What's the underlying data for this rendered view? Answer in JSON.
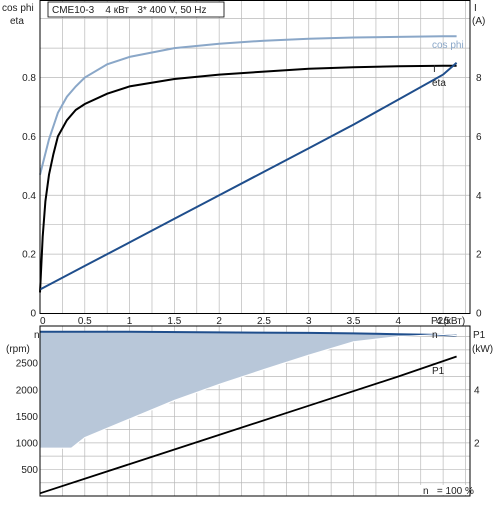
{
  "title": "CME10-3    4 кВт   3* 400 V, 50 Hz",
  "colors": {
    "cos_phi": "#8aa7c8",
    "eta": "#000000",
    "current": "#1f4e8c",
    "speed": "#1f4e8c",
    "speed_fill": "#b8c7d9",
    "p1": "#000000",
    "grid": "#b9b9b9"
  },
  "chart_data": [
    {
      "type": "line",
      "name": "electrical-curves",
      "x_axis": {
        "label": "P2(кВт)",
        "range": [
          0,
          4.8
        ],
        "ticks": [
          0,
          0.5,
          1,
          1.5,
          2,
          2.5,
          3,
          3.5,
          4,
          4.5
        ],
        "tick_labels": [
          "0",
          "0.5",
          "1",
          "1.5",
          "2",
          "2.5",
          "3",
          "3.5",
          "4",
          "4.5"
        ]
      },
      "y_left": {
        "label_line1": "cos phi",
        "label_line2": "eta",
        "range": [
          0,
          1.06
        ],
        "ticks": [
          0,
          0.2,
          0.4,
          0.6,
          0.8
        ],
        "tick_labels": [
          "0",
          "0.2",
          "0.4",
          "0.6",
          "0.8"
        ]
      },
      "y_right": {
        "label_line1": "I",
        "label_line2": "(A)",
        "range": [
          0,
          10.6
        ],
        "ticks": [
          0,
          2,
          4,
          6,
          8
        ],
        "tick_labels": [
          "0",
          "2",
          "4",
          "6",
          "8"
        ]
      },
      "grid": true,
      "series": [
        {
          "name": "cos phi",
          "axis": "left",
          "x": [
            0,
            0.05,
            0.1,
            0.2,
            0.3,
            0.4,
            0.5,
            0.75,
            1,
            1.5,
            2,
            2.5,
            3,
            3.5,
            4,
            4.5,
            4.65
          ],
          "y": [
            0.47,
            0.53,
            0.59,
            0.68,
            0.735,
            0.77,
            0.8,
            0.845,
            0.87,
            0.9,
            0.915,
            0.925,
            0.932,
            0.936,
            0.938,
            0.94,
            0.94
          ]
        },
        {
          "name": "eta",
          "axis": "left",
          "x": [
            0,
            0.03,
            0.06,
            0.1,
            0.15,
            0.2,
            0.3,
            0.4,
            0.5,
            0.75,
            1,
            1.5,
            2,
            2.5,
            3,
            3.5,
            4,
            4.5,
            4.65
          ],
          "y": [
            0.07,
            0.26,
            0.38,
            0.47,
            0.54,
            0.6,
            0.655,
            0.69,
            0.71,
            0.745,
            0.77,
            0.795,
            0.81,
            0.82,
            0.83,
            0.835,
            0.838,
            0.84,
            0.84
          ]
        },
        {
          "name": "I",
          "axis": "right",
          "x": [
            0,
            0.5,
            1,
            1.5,
            2,
            2.5,
            3,
            3.5,
            4,
            4.5,
            4.65
          ],
          "y": [
            0.8,
            1.6,
            2.4,
            3.2,
            4.0,
            4.8,
            5.6,
            6.4,
            7.25,
            8.1,
            8.5
          ]
        }
      ],
      "series_labels": {
        "cos_phi": "cos phi",
        "current": "I",
        "eta": "eta"
      }
    },
    {
      "type": "area",
      "name": "speed-and-input-power",
      "y_left": {
        "label_line1": "n",
        "label_line2": "(rpm)",
        "range": [
          0,
          3200
        ],
        "ticks": [
          500,
          1000,
          1500,
          2000,
          2500
        ],
        "tick_labels": [
          "500",
          "1000",
          "1500",
          "2000",
          "2500"
        ]
      },
      "y_right": {
        "label_line1": "P1",
        "label_line2": "(kW)",
        "range": [
          0,
          6.4
        ],
        "ticks": [
          2,
          4
        ],
        "tick_labels": [
          "2",
          "4"
        ]
      },
      "grid": true,
      "footer": "n   = 100 %",
      "series": [
        {
          "name": "n max",
          "axis": "left",
          "x": [
            0,
            1,
            2,
            3,
            3.5,
            4,
            4.5,
            4.65
          ],
          "y": [
            3090,
            3090,
            3080,
            3070,
            3060,
            3045,
            3030,
            3020
          ]
        },
        {
          "name": "n min",
          "axis": "left",
          "x": [
            0,
            0.35,
            0.5,
            1,
            1.5,
            2,
            2.5,
            3,
            3.5,
            4,
            4.5,
            4.65
          ],
          "y": [
            900,
            900,
            1100,
            1450,
            1800,
            2100,
            2380,
            2650,
            2900,
            3000,
            3040,
            3020
          ]
        },
        {
          "name": "P1",
          "axis": "right",
          "x": [
            0,
            1,
            2,
            3,
            4,
            4.65
          ],
          "y": [
            0.1,
            1.2,
            2.3,
            3.4,
            4.5,
            5.25
          ]
        }
      ],
      "series_labels": {
        "speed": "n",
        "p1": "P1"
      }
    }
  ]
}
